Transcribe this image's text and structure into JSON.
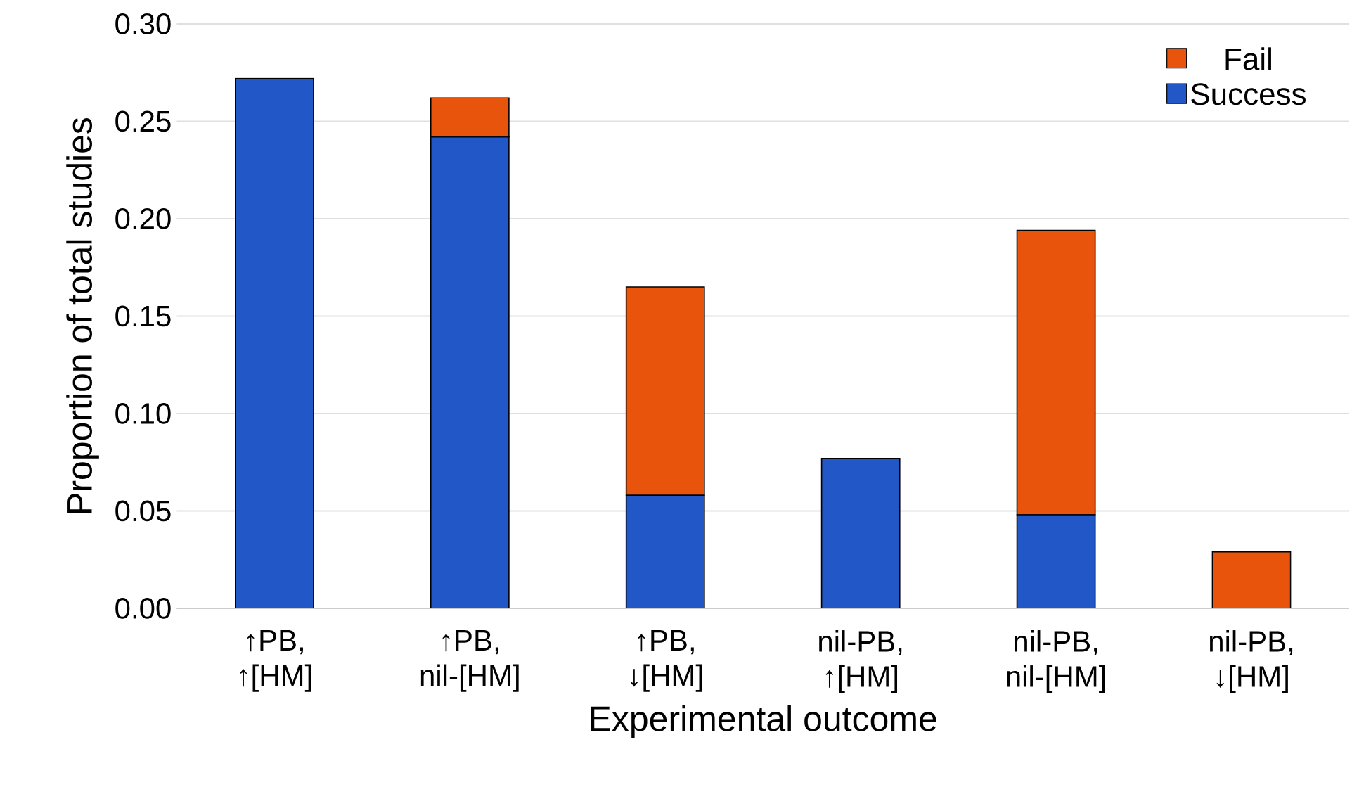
{
  "chart_data": {
    "type": "bar",
    "stacked": true,
    "xlabel": "Experimental outcome",
    "ylabel": "Proportion of total studies",
    "categories": [
      "↑PB, ↑[HM]",
      "↑PB, nil-[HM]",
      "↑PB, ↓[HM]",
      "nil-PB, ↑[HM]",
      "nil-PB, nil-[HM]",
      "nil-PB, ↓[HM]"
    ],
    "series": [
      {
        "name": "Success",
        "color": "#2257c7",
        "values": [
          0.272,
          0.242,
          0.058,
          0.077,
          0.048,
          null
        ]
      },
      {
        "name": "Fail",
        "color": "#e9540d",
        "values": [
          null,
          0.02,
          0.107,
          null,
          0.146,
          0.029
        ]
      }
    ],
    "ylim": [
      0,
      0.3
    ],
    "yticks": [
      {
        "value": 0,
        "label": "0.00"
      },
      {
        "value": 0.05,
        "label": "0.05"
      },
      {
        "value": 0.1,
        "label": "0.10"
      },
      {
        "value": 0.15,
        "label": "0.15"
      },
      {
        "value": 0.2,
        "label": "0.20"
      },
      {
        "value": 0.25,
        "label": "0.25"
      },
      {
        "value": 0.3,
        "label": "0.30"
      }
    ],
    "grid": "y",
    "legend": "top right"
  }
}
